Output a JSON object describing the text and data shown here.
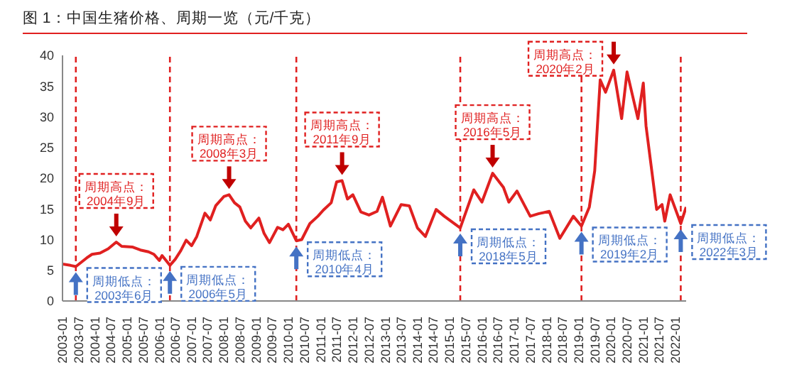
{
  "chart_data": {
    "type": "line",
    "title": "图 1：中国生猪价格、周期一览（元/千克）",
    "x": [
      "2003-01",
      "2003-04",
      "2003-06",
      "2003-08",
      "2003-10",
      "2003-12",
      "2004-03",
      "2004-06",
      "2004-09",
      "2004-11",
      "2005-03",
      "2005-06",
      "2005-09",
      "2005-11",
      "2006-01",
      "2006-02",
      "2006-05",
      "2006-07",
      "2006-09",
      "2006-11",
      "2007-01",
      "2007-03",
      "2007-06",
      "2007-08",
      "2007-10",
      "2008-01",
      "2008-03",
      "2008-05",
      "2008-07",
      "2008-09",
      "2008-11",
      "2009-02",
      "2009-04",
      "2009-06",
      "2009-09",
      "2009-11",
      "2010-01",
      "2010-04",
      "2010-06",
      "2010-09",
      "2010-12",
      "2011-02",
      "2011-05",
      "2011-07",
      "2011-09",
      "2011-11",
      "2012-01",
      "2012-04",
      "2012-07",
      "2012-10",
      "2012-12",
      "2013-03",
      "2013-07",
      "2013-10",
      "2014-01",
      "2014-04",
      "2014-08",
      "2014-11",
      "2015-05",
      "2015-10",
      "2016-01",
      "2016-05",
      "2016-09",
      "2016-11",
      "2017-02",
      "2017-07",
      "2017-10",
      "2018-02",
      "2018-06",
      "2018-11",
      "2019-02",
      "2019-05",
      "2019-07",
      "2019-09",
      "2019-11",
      "2020-02",
      "2020-05",
      "2020-07",
      "2020-11",
      "2021-01",
      "2021-02",
      "2021-05",
      "2021-06",
      "2021-08",
      "2021-09",
      "2021-11",
      "2022-03",
      "2022-05"
    ],
    "series": [
      {
        "color": "#e02020",
        "values": [
          6.0,
          5.8,
          5.6,
          6.3,
          7.0,
          7.6,
          7.8,
          8.5,
          9.6,
          8.9,
          8.8,
          8.3,
          8.0,
          7.6,
          6.6,
          7.4,
          5.8,
          6.8,
          8.2,
          9.9,
          9.0,
          10.5,
          14.3,
          13.2,
          15.5,
          17.0,
          17.3,
          16.0,
          15.3,
          13.0,
          11.9,
          13.5,
          11.0,
          9.5,
          12.0,
          11.6,
          12.5,
          9.8,
          10.0,
          12.6,
          13.8,
          14.8,
          16.0,
          19.4,
          19.6,
          16.6,
          17.3,
          14.5,
          14.0,
          14.6,
          16.9,
          12.2,
          15.7,
          15.5,
          11.9,
          10.5,
          14.9,
          13.8,
          11.9,
          18.1,
          16.1,
          20.8,
          18.5,
          16.1,
          17.9,
          13.8,
          14.2,
          14.6,
          10.2,
          13.8,
          12.2,
          15.3,
          21.2,
          36.0,
          34.0,
          37.6,
          29.7,
          37.3,
          29.7,
          35.5,
          28.5,
          18.5,
          14.9,
          15.7,
          13.0,
          17.3,
          12.6,
          15.3
        ]
      }
    ],
    "xlim": [
      "2003-01",
      "2022-05"
    ],
    "xticks": [
      "2003-01",
      "2003-07",
      "2004-01",
      "2004-07",
      "2005-01",
      "2005-07",
      "2006-01",
      "2006-07",
      "2007-01",
      "2007-07",
      "2008-01",
      "2008-07",
      "2009-01",
      "2009-07",
      "2010-01",
      "2010-07",
      "2011-01",
      "2011-07",
      "2012-01",
      "2012-07",
      "2013-01",
      "2013-07",
      "2014-01",
      "2014-07",
      "2015-01",
      "2015-07",
      "2016-01",
      "2016-07",
      "2017-01",
      "2017-07",
      "2018-01",
      "2018-07",
      "2019-01",
      "2019-07",
      "2020-01",
      "2020-07",
      "2021-01",
      "2021-07",
      "2022-01"
    ],
    "ylim": [
      0,
      40
    ],
    "yticks": [
      0,
      5,
      10,
      15,
      20,
      25,
      30,
      35,
      40
    ],
    "grid": false,
    "legend": false,
    "marker": "none",
    "line_style": "solid",
    "ref_lines": [
      {
        "axis": "x",
        "value": "2003-06",
        "color": "#e02020",
        "line_style": "dashed"
      },
      {
        "axis": "x",
        "value": "2006-05",
        "color": "#e02020",
        "line_style": "dashed"
      },
      {
        "axis": "x",
        "value": "2010-04",
        "color": "#e02020",
        "line_style": "dashed"
      },
      {
        "axis": "x",
        "value": "2015-05",
        "color": "#e02020",
        "line_style": "dashed"
      },
      {
        "axis": "x",
        "value": "2019-02",
        "color": "#e02020",
        "line_style": "dashed"
      },
      {
        "axis": "x",
        "value": "2022-03",
        "color": "#e02020",
        "line_style": "dashed"
      }
    ],
    "annotations": [
      {
        "text": "周期高点：\n2004年9月",
        "x": "2004-09",
        "y": 9.6
      },
      {
        "text": "周期高点：\n2008年3月",
        "x": "2008-03",
        "y": 17.3
      },
      {
        "text": "周期高点：\n2011年9月",
        "x": "2011-09",
        "y": 19.6
      },
      {
        "text": "周期高点：\n2016年5月",
        "x": "2016-05",
        "y": 20.8
      },
      {
        "text": "周期高点：\n2020年2月",
        "x": "2020-02",
        "y": 37.6
      },
      {
        "text": "周期低点：\n2003年6月",
        "x": "2003-06",
        "y": 5.6
      },
      {
        "text": "周期低点：\n2006年5月",
        "x": "2006-05",
        "y": 5.8
      },
      {
        "text": "周期低点：\n2010年4月",
        "x": "2010-04",
        "y": 9.8
      },
      {
        "text": "周期低点：\n2018年5月",
        "x": "2015-05",
        "y": 11.9
      },
      {
        "text": "周期低点：\n2019年2月",
        "x": "2019-02",
        "y": 12.2
      },
      {
        "text": "周期低点：\n2022年3月",
        "x": "2022-03",
        "y": 12.6
      }
    ]
  }
}
